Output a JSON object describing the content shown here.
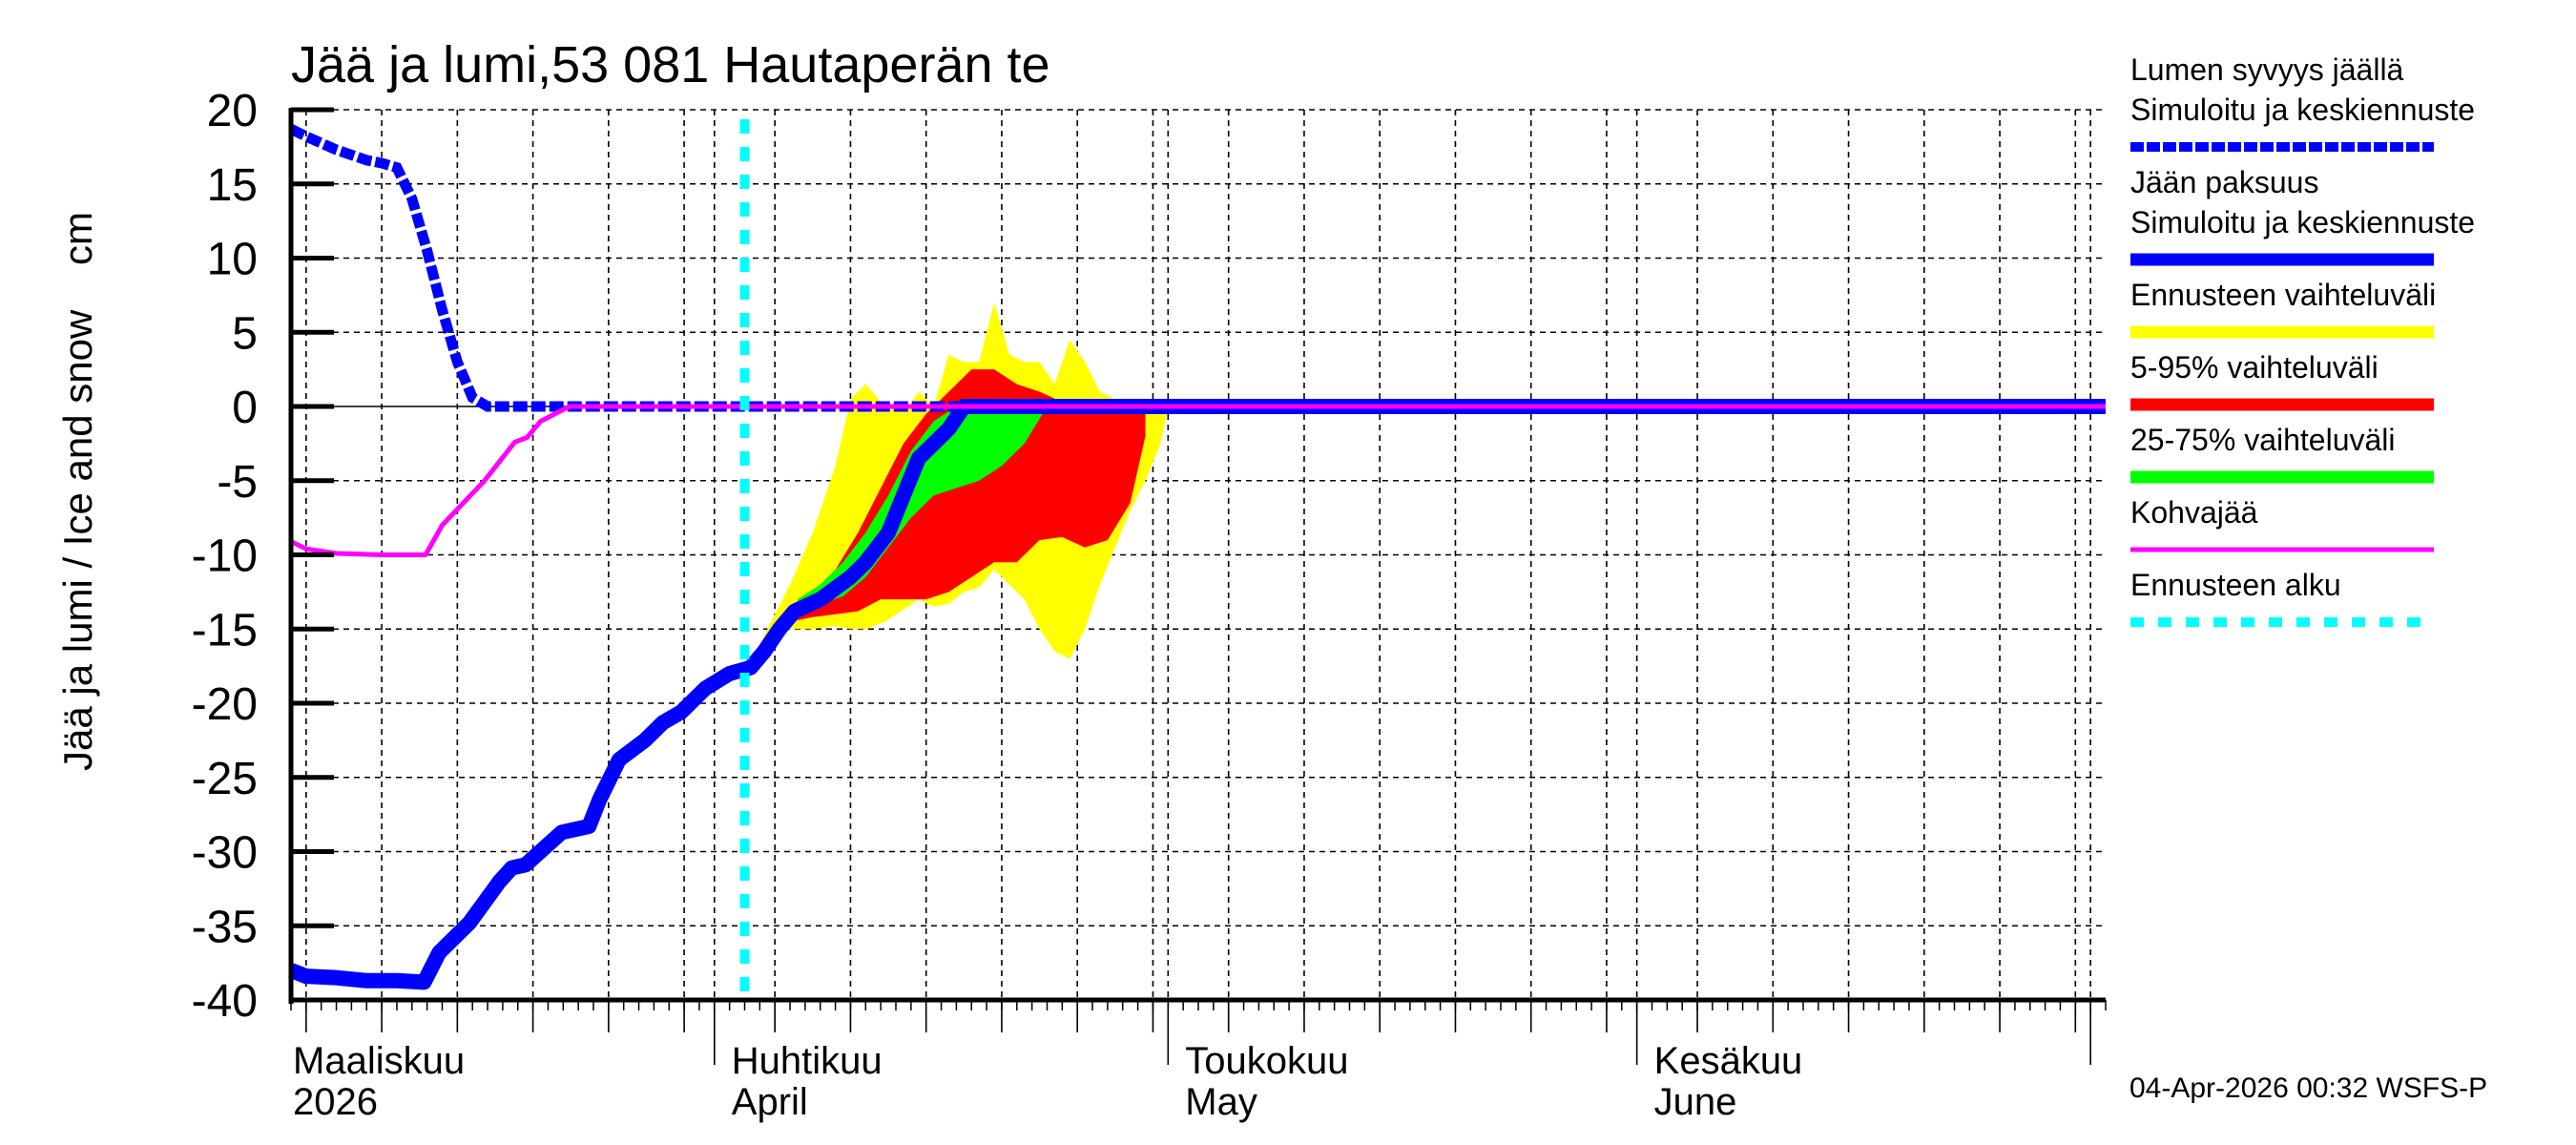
{
  "chart_data": {
    "type": "line",
    "title": "Jää ja lumi,53 081 Hautaperän te",
    "ylabel": "Jää ja lumi / Ice and snow    cm",
    "xlabel": "",
    "ylim": [
      -40,
      20
    ],
    "yticks": [
      20,
      15,
      10,
      5,
      0,
      -5,
      -10,
      -15,
      -20,
      -25,
      -30,
      -35,
      -40
    ],
    "xlim": [
      "2026-03-04",
      "2026-07-02"
    ],
    "grid": true,
    "legend_position": "right",
    "month_labels": [
      {
        "fi": "Maaliskuu",
        "en": "2026",
        "date": "2026-03-01"
      },
      {
        "fi": "Huhtikuu",
        "en": "April",
        "date": "2026-04-01"
      },
      {
        "fi": "Toukokuu",
        "en": "May",
        "date": "2026-05-01"
      },
      {
        "fi": "Kesäkuu",
        "en": "June",
        "date": "2026-06-01"
      }
    ],
    "forecast_start": "2026-04-03",
    "series": [
      {
        "name": "Lumen syvyys jäällä — Simuloitu ja keskiennuste",
        "color": "#0000ff",
        "style": "dashed",
        "x_day": [
          0,
          1,
          3,
          5,
          6,
          7,
          8,
          9,
          10,
          11,
          12,
          13,
          14,
          120
        ],
        "values": [
          18.7,
          18.2,
          17.3,
          16.6,
          16.4,
          16.1,
          14.0,
          10.5,
          6.5,
          3.0,
          0.6,
          0.0,
          0.0,
          0.0
        ]
      },
      {
        "name": "Jään paksuus — Simuloitu ja keskiennuste",
        "color": "#0000ff",
        "style": "solid",
        "x_day": [
          0,
          1,
          3,
          5,
          7,
          8.8,
          9.8,
          11.8,
          13.8,
          14.6,
          15.5,
          17.9,
          19.7,
          20.4,
          21.7,
          23.4,
          24.6,
          25.8,
          27.4,
          29.0,
          30.4,
          31.3,
          32.3,
          33.3,
          35.0,
          37.0,
          38.0,
          39.5,
          40.5,
          41.5,
          42.5,
          43.5,
          44.5,
          46.0,
          120
        ],
        "values": [
          -38.0,
          -38.4,
          -38.5,
          -38.7,
          -38.7,
          -38.8,
          -36.8,
          -34.8,
          -32.0,
          -31.1,
          -30.9,
          -28.7,
          -28.3,
          -26.5,
          -23.8,
          -22.5,
          -21.3,
          -20.6,
          -19.0,
          -18.0,
          -17.6,
          -16.5,
          -15.0,
          -13.8,
          -13.0,
          -11.5,
          -10.5,
          -8.5,
          -6.0,
          -3.5,
          -2.5,
          -1.5,
          0.0,
          0.0,
          0.0
        ]
      },
      {
        "name": "Kohvajää",
        "color": "#ff00ff",
        "style": "solid",
        "x_day": [
          0,
          1,
          3,
          6,
          8.9,
          10,
          12.8,
          14.8,
          15.6,
          16.5,
          18.4,
          120
        ],
        "values": [
          -9.1,
          -9.6,
          -9.9,
          -10.0,
          -10.0,
          -8.0,
          -5.0,
          -2.4,
          -2.1,
          -1.0,
          0.0,
          0.0
        ]
      }
    ],
    "bands": [
      {
        "name": "Ennusteen vaihteluväli",
        "color": "#ffff00",
        "x_day": [
          30.4,
          31.5,
          33.0,
          34.5,
          36.0,
          37.0,
          38.0,
          39.3,
          40.8,
          41.5,
          42.5,
          43.5,
          44.5,
          45.5,
          46.5,
          47.5,
          48.5,
          49.5,
          50.5,
          51.5,
          52.5,
          53.5,
          54.5,
          55.5,
          56.5,
          57.5,
          58.0
        ],
        "upper": [
          -17.5,
          -15.0,
          -12.0,
          -8.5,
          -4.0,
          0.5,
          1.5,
          0.0,
          0.0,
          1.0,
          0.0,
          3.5,
          3.0,
          3.0,
          7.0,
          3.5,
          3.0,
          3.0,
          1.5,
          4.5,
          3.0,
          1.0,
          0.5,
          0.3,
          0.2,
          0.0,
          0.0
        ],
        "lower": [
          -17.5,
          -15.5,
          -15.0,
          -15.0,
          -14.8,
          -15.0,
          -15.0,
          -14.5,
          -13.5,
          -13.0,
          -13.5,
          -13.3,
          -12.5,
          -12.2,
          -11.0,
          -12.0,
          -13.0,
          -15.0,
          -16.5,
          -17.0,
          -15.0,
          -12.0,
          -9.5,
          -7.0,
          -5.0,
          -2.5,
          0.0
        ]
      },
      {
        "name": "5-95% vaihteluväli",
        "color": "#ff0000",
        "x_day": [
          30.4,
          31.5,
          33.0,
          34.5,
          36.0,
          37.5,
          39.0,
          40.5,
          42.0,
          43.5,
          45.0,
          46.5,
          48.0,
          49.5,
          51.0,
          52.5,
          54.0,
          55.5,
          56.5
        ],
        "upper": [
          -17.5,
          -15.5,
          -13.5,
          -12.5,
          -11.0,
          -8.5,
          -5.5,
          -2.5,
          -0.5,
          1.0,
          2.5,
          2.5,
          1.5,
          1.0,
          0.3,
          0.0,
          0.0,
          0.0,
          0.0
        ],
        "lower": [
          -17.5,
          -16.0,
          -14.5,
          -14.2,
          -14.0,
          -13.8,
          -13.0,
          -13.0,
          -13.0,
          -12.5,
          -11.5,
          -10.5,
          -10.5,
          -9.0,
          -8.8,
          -9.5,
          -9.0,
          -6.5,
          -2.0
        ]
      },
      {
        "name": "25-75% vaihteluväli",
        "color": "#00ff00",
        "x_day": [
          33.5,
          35.0,
          36.5,
          38.0,
          39.5,
          41.0,
          42.5,
          44.0,
          45.5,
          47.0,
          48.5,
          50.0
        ],
        "upper": [
          -13.0,
          -12.0,
          -10.5,
          -8.5,
          -6.0,
          -3.0,
          -1.0,
          0.0,
          0.0,
          0.0,
          0.0,
          0.0
        ],
        "lower": [
          -13.5,
          -13.3,
          -12.8,
          -11.5,
          -9.5,
          -7.5,
          -6.0,
          -5.5,
          -5.0,
          -4.0,
          -2.5,
          0.0
        ]
      }
    ]
  },
  "legend": {
    "items": [
      {
        "line1": "Lumen syvyys jäällä",
        "line2": "Simuloitu ja keskiennuste",
        "color": "#0000ff",
        "style": "dashed"
      },
      {
        "line1": "Jään paksuus",
        "line2": "Simuloitu ja keskiennuste",
        "color": "#0000ff",
        "style": "solid"
      },
      {
        "line1": "Ennusteen vaihteluväli",
        "color": "#ffff00",
        "style": "band"
      },
      {
        "line1": "5-95% vaihteluväli",
        "color": "#ff0000",
        "style": "band"
      },
      {
        "line1": "25-75% vaihteluväli",
        "color": "#00ff00",
        "style": "band"
      },
      {
        "line1": "Kohvajää",
        "color": "#ff00ff",
        "style": "thin"
      },
      {
        "line1": "Ennusteen alku",
        "color": "#00ffff",
        "style": "dotted"
      }
    ]
  },
  "footer": {
    "timestamp": "04-Apr-2026 00:32 WSFS-P"
  }
}
